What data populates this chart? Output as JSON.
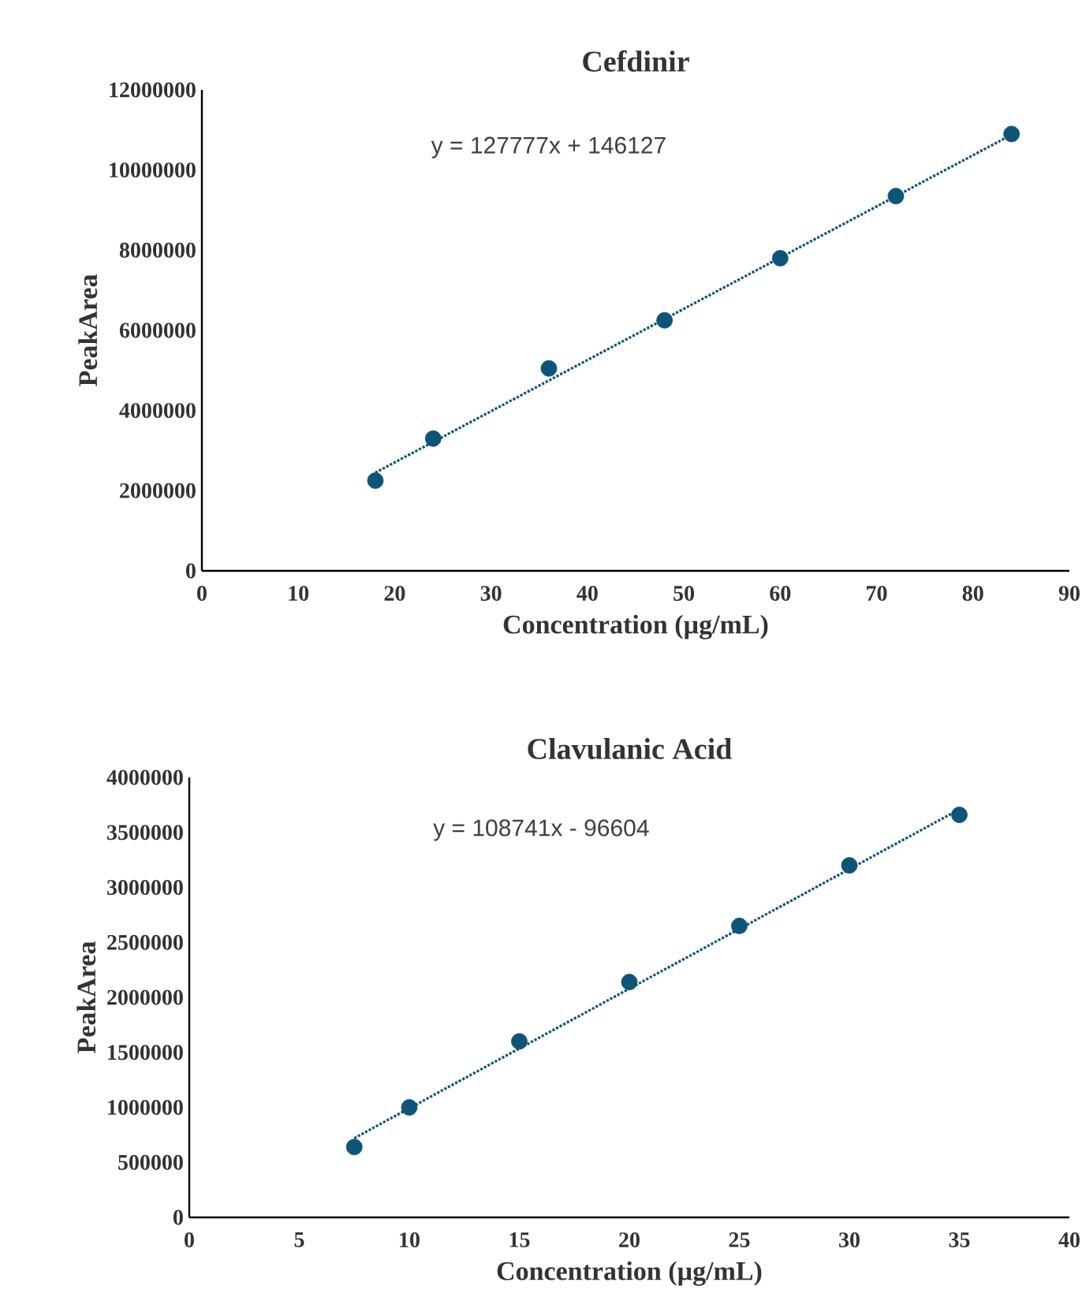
{
  "chart_data": [
    {
      "type": "scatter",
      "title": "Cefdinir",
      "xlabel": "Concentration (µg/mL)",
      "ylabel": "PeakArea",
      "annotations": [
        "y = 127777x + 146127"
      ],
      "x": [
        18,
        24,
        36,
        48,
        60,
        72,
        84
      ],
      "series": [
        {
          "color": "#0e5479",
          "marker": "circle",
          "values": [
            2250000,
            3300000,
            5050000,
            6250000,
            7800000,
            9350000,
            10900000
          ]
        },
        {
          "type": "line",
          "color": "#0e5479",
          "line_style": "dotted",
          "marker": "none",
          "x": [
            18,
            84
          ],
          "values": [
            2450000,
            10880000
          ]
        }
      ],
      "xlim": [
        0,
        90
      ],
      "xticks": [
        0,
        10,
        20,
        30,
        40,
        50,
        60,
        70,
        80,
        90
      ],
      "ylim": [
        0,
        12000000
      ],
      "yticks": [
        0,
        2000000,
        4000000,
        6000000,
        8000000,
        10000000,
        12000000
      ]
    },
    {
      "type": "scatter",
      "title": "Clavulanic Acid",
      "xlabel": "Concentration (µg/mL)",
      "ylabel": "PeakArea",
      "annotations": [
        "y = 108741x - 96604"
      ],
      "x": [
        7.5,
        10,
        15,
        20,
        25,
        30,
        35
      ],
      "series": [
        {
          "color": "#0e5479",
          "marker": "circle",
          "values": [
            640000,
            1000000,
            1600000,
            2140000,
            2650000,
            3200000,
            3660000
          ]
        },
        {
          "type": "line",
          "color": "#0e5479",
          "line_style": "dotted",
          "marker": "none",
          "x": [
            7.5,
            35
          ],
          "values": [
            720000,
            3710000
          ]
        }
      ],
      "xlim": [
        0,
        40
      ],
      "xticks": [
        0,
        5,
        10,
        15,
        20,
        25,
        30,
        35,
        40
      ],
      "ylim": [
        0,
        4000000
      ],
      "yticks": [
        0,
        500000,
        1000000,
        1500000,
        2000000,
        2500000,
        3000000,
        3500000,
        4000000
      ]
    }
  ]
}
